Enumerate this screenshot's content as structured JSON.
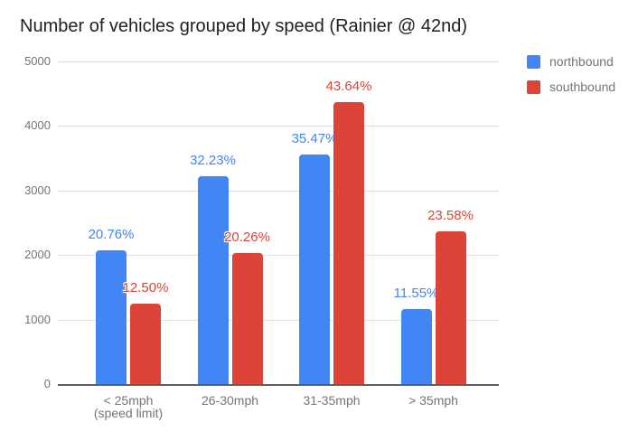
{
  "title": "Number of vehicles grouped by speed (Rainier @ 42nd)",
  "legend": [
    {
      "label": "northbound",
      "color": "#4285F4"
    },
    {
      "label": "southbound",
      "color": "#DB4437"
    }
  ],
  "y_axis": {
    "ticks": [
      0,
      1000,
      2000,
      3000,
      4000,
      5000
    ],
    "min": 0,
    "max": 5000
  },
  "x_axis": {
    "category_lines": [
      [
        "< 25mph",
        "(speed limit)"
      ],
      [
        "26-30mph"
      ],
      [
        "31-35mph"
      ],
      [
        "> 35mph"
      ]
    ]
  },
  "colors": {
    "northbound": "#4285F4",
    "southbound": "#DB4437",
    "gridline": "#e0e0e0",
    "axis_line": "#5f5f5f",
    "axis_text": "#757575",
    "title_text": "#212121"
  },
  "chart_data": {
    "type": "bar",
    "title": "Number of vehicles grouped by speed (Rainier @ 42nd)",
    "categories": [
      "< 25mph (speed limit)",
      "26-30mph",
      "31-35mph",
      "> 35mph"
    ],
    "series": [
      {
        "name": "northbound",
        "color": "#4285F4",
        "values": [
          2076,
          3223,
          3547,
          1155
        ],
        "labels": [
          "20.76%",
          "32.23%",
          "35.47%",
          "11.55%"
        ]
      },
      {
        "name": "southbound",
        "color": "#DB4437",
        "values": [
          1250,
          2026,
          4364,
          2358
        ],
        "labels": [
          "12.50%",
          "20.26%",
          "43.64%",
          "23.58%"
        ]
      }
    ],
    "xlabel": "",
    "ylabel": "",
    "ylim": [
      0,
      5000
    ],
    "grid": true,
    "legend_position": "right"
  }
}
